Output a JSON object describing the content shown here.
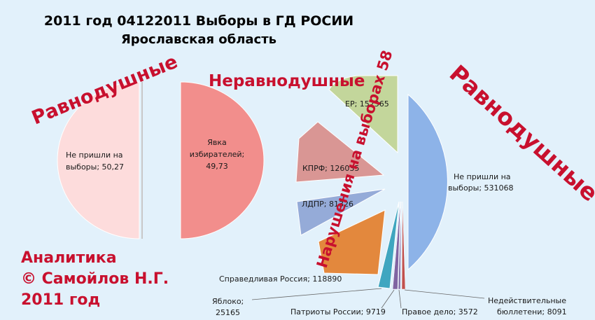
{
  "title_line1": "2011 год 04122011  Выборы в ГД  РОСИИ",
  "title_line2": "Ярославская область",
  "ravnodushnye_left": "Равнодушные",
  "neravnodushnye": "Неравнодушные",
  "narusheniya": "Нарушения на выборах 58",
  "ravnodushnye_right": "Равнодушные",
  "credit": [
    "Аналитика",
    "© Самойлов Н.Г.",
    "2011 год"
  ],
  "colors": {
    "left_absent": "#fddcdc",
    "left_turnout": "#f28e8c",
    "right_absent": "#8db3e8",
    "er": "#c3d69b",
    "kprf": "#d99694",
    "ldpr": "#95abd8",
    "sr": "#e3883d",
    "yabloko": "#3fa6c0",
    "patrioty": "#8064a2",
    "pravoe": "#7e6aa6",
    "nedeist": "#c0504d"
  },
  "chart_data": [
    {
      "type": "pie",
      "slices": [
        {
          "label": "Не пришли на выборы; 50,27",
          "value": 50.27
        },
        {
          "label": "Явка избирателей; 49,73",
          "value": 49.73
        }
      ]
    },
    {
      "type": "pie",
      "slices": [
        {
          "label": "Не пришли на выборы; 531068",
          "value": 531068
        },
        {
          "label": "ЕР; 152565",
          "value": 152565
        },
        {
          "label": "КПРФ; 126035",
          "value": 126035
        },
        {
          "label": "ЛДПР; 81326",
          "value": 81326
        },
        {
          "label": "Справедливая Россия; 118890",
          "value": 118890
        },
        {
          "label": "Яблоко; 25165",
          "value": 25165
        },
        {
          "label": "Патриоты России; 9719",
          "value": 9719
        },
        {
          "label": "Правое дело; 3572",
          "value": 3572
        },
        {
          "label": "Недействительные бюллетени; 8091",
          "value": 8091
        }
      ]
    }
  ]
}
